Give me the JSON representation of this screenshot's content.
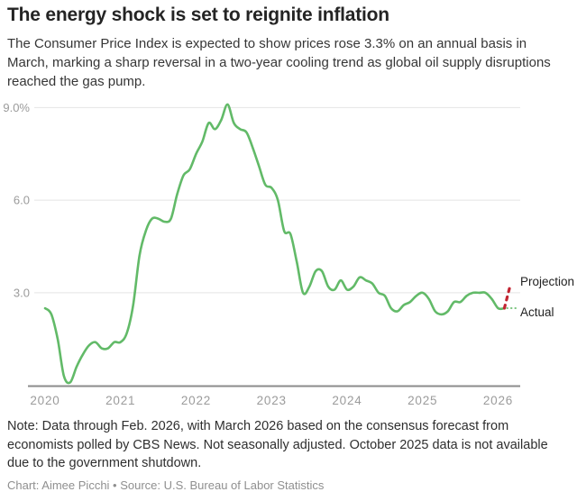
{
  "header": {
    "title": "The energy shock is set to reignite inflation",
    "subtitle": "The Consumer Price Index is expected to show prices rose 3.3% on an annual basis in March, marking a sharp reversal in a two-year cooling trend as global oil supply disruptions reached the gas pump."
  },
  "chart_data": {
    "type": "line",
    "title": "",
    "xlabel": "",
    "ylabel": "",
    "x_axis": {
      "start_month": "2020-01",
      "end_month": "2026-03",
      "tick_labels": [
        "2020",
        "2021",
        "2022",
        "2023",
        "2024",
        "2025",
        "2026"
      ],
      "tick_years": [
        2020,
        2021,
        2022,
        2023,
        2024,
        2025,
        2026
      ]
    },
    "y_axis": {
      "unit": "percent annual change",
      "range": [
        0,
        9.5
      ],
      "ticks": [
        {
          "value": 3,
          "label": "3.0"
        },
        {
          "value": 6,
          "label": "6.0"
        },
        {
          "value": 9,
          "label": "9.0%"
        }
      ],
      "grid": true
    },
    "series": [
      {
        "name": "Actual",
        "style": "solid",
        "start_month": "2020-01",
        "values": [
          2.5,
          2.3,
          1.5,
          0.3,
          0.1,
          0.6,
          1.0,
          1.3,
          1.4,
          1.2,
          1.2,
          1.4,
          1.4,
          1.7,
          2.6,
          4.2,
          5.0,
          5.4,
          5.4,
          5.3,
          5.4,
          6.2,
          6.8,
          7.0,
          7.5,
          7.9,
          8.5,
          8.3,
          8.6,
          9.1,
          8.5,
          8.3,
          8.2,
          7.7,
          7.1,
          6.5,
          6.4,
          6.0,
          5.0,
          4.9,
          4.0,
          3.0,
          3.2,
          3.7,
          3.7,
          3.2,
          3.1,
          3.4,
          3.1,
          3.2,
          3.5,
          3.4,
          3.3,
          3.0,
          2.9,
          2.5,
          2.4,
          2.6,
          2.7,
          2.9,
          3.0,
          2.8,
          2.4,
          2.3,
          2.4,
          2.7,
          2.7,
          2.9,
          3.0,
          3.0,
          3.0,
          2.8,
          2.5,
          2.5
        ]
      },
      {
        "name": "Projection",
        "style": "dashed",
        "months": [
          "2026-02",
          "2026-03"
        ],
        "values": [
          2.5,
          3.3
        ]
      }
    ],
    "annotations": {
      "projection_label": "Projection",
      "actual_label": "Actual"
    },
    "peak": {
      "month": "2022-06",
      "value": 9.1
    },
    "legend_position": "right-inline"
  },
  "footer": {
    "note": "Note: Data through Feb. 2026, with March 2026 based on the consensus forecast from economists polled by CBS News. Not seasonally adjusted. October 2025 data is not available due to the government shutdown.",
    "credit": "Chart: Aimee Picchi • Source: U.S. Bureau of Labor Statistics"
  },
  "colors": {
    "line_green": "#62ba68",
    "projection_red": "#c22532",
    "grid": "#e4e4e4",
    "axis": "#8b8b8b",
    "tick_text": "#9b9b9b",
    "title_text": "#242424",
    "body_text": "#363636",
    "credit_text": "#8f8f8f"
  }
}
